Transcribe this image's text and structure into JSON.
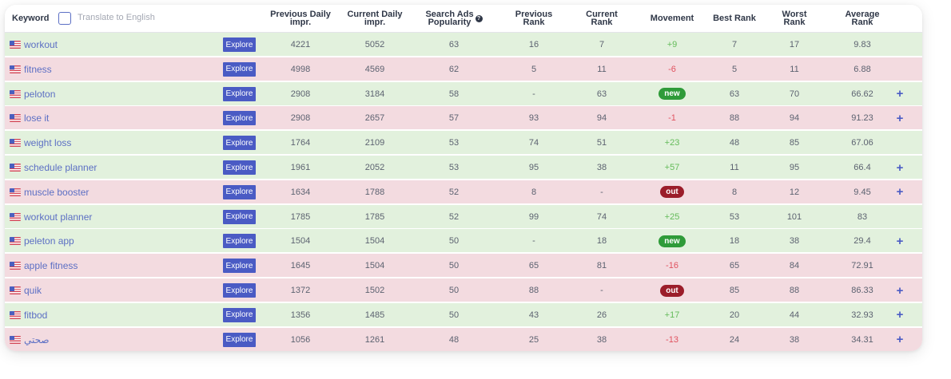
{
  "header": {
    "keyword": "Keyword",
    "translate_label": "Translate to English",
    "prev_daily": "Previous Daily\nimpr.",
    "cur_daily": "Current Daily\nimpr.",
    "search_ads": "Search Ads\nPopularity",
    "prev_rank": "Previous\nRank",
    "cur_rank": "Current\nRank",
    "movement": "Movement",
    "best_rank": "Best Rank",
    "worst_rank": "Worst\nRank",
    "avg_rank": "Average\nRank"
  },
  "explore_label": "Explore",
  "colors": {
    "green_row": "#e2f1dd",
    "red_row": "#f3dbe0",
    "accent": "#4a5bc4",
    "positive": "#64bb5a",
    "negative": "#e0525f",
    "badge_new": "#2f9b39",
    "badge_out": "#9b1d2a"
  },
  "rows": [
    {
      "keyword": "workout",
      "status": "green",
      "prev_daily": "4221",
      "cur_daily": "5052",
      "popularity": "63",
      "prev_rank": "16",
      "cur_rank": "7",
      "movement": "+9",
      "movement_type": "pos",
      "best": "7",
      "worst": "17",
      "avg": "9.83",
      "plus": false
    },
    {
      "keyword": "fitness",
      "status": "red",
      "prev_daily": "4998",
      "cur_daily": "4569",
      "popularity": "62",
      "prev_rank": "5",
      "cur_rank": "11",
      "movement": "-6",
      "movement_type": "neg",
      "best": "5",
      "worst": "11",
      "avg": "6.88",
      "plus": false
    },
    {
      "keyword": "peloton",
      "status": "green",
      "prev_daily": "2908",
      "cur_daily": "3184",
      "popularity": "58",
      "prev_rank": "-",
      "cur_rank": "63",
      "movement": "new",
      "movement_type": "new",
      "best": "63",
      "worst": "70",
      "avg": "66.62",
      "plus": true
    },
    {
      "keyword": "lose it",
      "status": "red",
      "prev_daily": "2908",
      "cur_daily": "2657",
      "popularity": "57",
      "prev_rank": "93",
      "cur_rank": "94",
      "movement": "-1",
      "movement_type": "neg",
      "best": "88",
      "worst": "94",
      "avg": "91.23",
      "plus": true
    },
    {
      "keyword": "weight loss",
      "status": "green",
      "prev_daily": "1764",
      "cur_daily": "2109",
      "popularity": "53",
      "prev_rank": "74",
      "cur_rank": "51",
      "movement": "+23",
      "movement_type": "pos",
      "best": "48",
      "worst": "85",
      "avg": "67.06",
      "plus": false
    },
    {
      "keyword": "schedule planner",
      "status": "green",
      "prev_daily": "1961",
      "cur_daily": "2052",
      "popularity": "53",
      "prev_rank": "95",
      "cur_rank": "38",
      "movement": "+57",
      "movement_type": "pos",
      "best": "11",
      "worst": "95",
      "avg": "66.4",
      "plus": true
    },
    {
      "keyword": "muscle booster",
      "status": "red",
      "prev_daily": "1634",
      "cur_daily": "1788",
      "popularity": "52",
      "prev_rank": "8",
      "cur_rank": "-",
      "movement": "out",
      "movement_type": "out",
      "best": "8",
      "worst": "12",
      "avg": "9.45",
      "plus": true
    },
    {
      "keyword": "workout planner",
      "status": "green",
      "prev_daily": "1785",
      "cur_daily": "1785",
      "popularity": "52",
      "prev_rank": "99",
      "cur_rank": "74",
      "movement": "+25",
      "movement_type": "pos",
      "best": "53",
      "worst": "101",
      "avg": "83",
      "plus": false
    },
    {
      "keyword": "peleton app",
      "status": "green",
      "prev_daily": "1504",
      "cur_daily": "1504",
      "popularity": "50",
      "prev_rank": "-",
      "cur_rank": "18",
      "movement": "new",
      "movement_type": "new",
      "best": "18",
      "worst": "38",
      "avg": "29.4",
      "plus": true
    },
    {
      "keyword": "apple fitness",
      "status": "red",
      "prev_daily": "1645",
      "cur_daily": "1504",
      "popularity": "50",
      "prev_rank": "65",
      "cur_rank": "81",
      "movement": "-16",
      "movement_type": "neg",
      "best": "65",
      "worst": "84",
      "avg": "72.91",
      "plus": false
    },
    {
      "keyword": "quik",
      "status": "red",
      "prev_daily": "1372",
      "cur_daily": "1502",
      "popularity": "50",
      "prev_rank": "88",
      "cur_rank": "-",
      "movement": "out",
      "movement_type": "out",
      "best": "85",
      "worst": "88",
      "avg": "86.33",
      "plus": true
    },
    {
      "keyword": "fitbod",
      "status": "green",
      "prev_daily": "1356",
      "cur_daily": "1485",
      "popularity": "50",
      "prev_rank": "43",
      "cur_rank": "26",
      "movement": "+17",
      "movement_type": "pos",
      "best": "20",
      "worst": "44",
      "avg": "32.93",
      "plus": true
    },
    {
      "keyword": "صحتي",
      "status": "red",
      "prev_daily": "1056",
      "cur_daily": "1261",
      "popularity": "48",
      "prev_rank": "25",
      "cur_rank": "38",
      "movement": "-13",
      "movement_type": "neg",
      "best": "24",
      "worst": "38",
      "avg": "34.31",
      "plus": true
    }
  ]
}
